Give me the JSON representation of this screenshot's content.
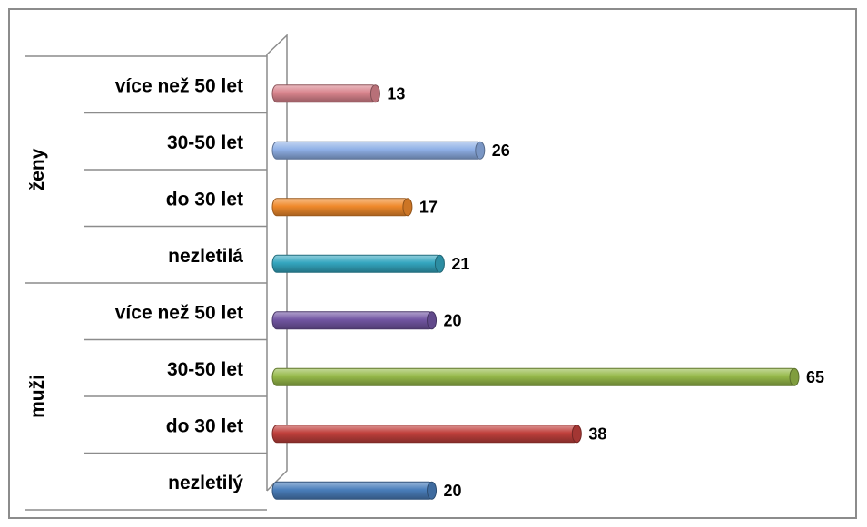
{
  "chart_data": {
    "type": "bar",
    "orientation": "horizontal",
    "groups": [
      {
        "label": "ženy",
        "categories": [
          "více než 50 let",
          "30-50 let",
          "do 30 let",
          "nezletilá"
        ],
        "values": [
          13,
          26,
          17,
          21
        ],
        "colors": [
          "#d9848d",
          "#8fb0e6",
          "#f08a2c",
          "#34a6bf"
        ]
      },
      {
        "label": "muži",
        "categories": [
          "více než 50 let",
          "30-50 let",
          "do 30 let",
          "nezletilý"
        ],
        "values": [
          20,
          65,
          38,
          20
        ],
        "colors": [
          "#7256a3",
          "#96b949",
          "#c0403c",
          "#4a7ebb"
        ]
      }
    ],
    "xlim": [
      0,
      65
    ],
    "grid": false,
    "data_labels": true,
    "legend": "none"
  }
}
